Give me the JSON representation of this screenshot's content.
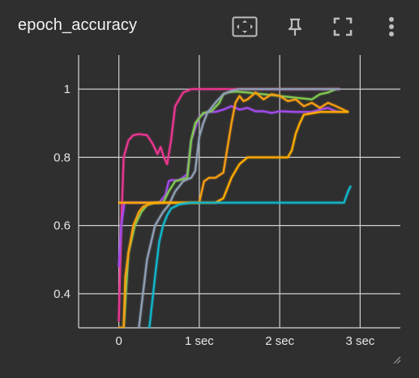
{
  "card": {
    "title": "epoch_accuracy"
  },
  "toolbar": {
    "icons": [
      "fit-domain-icon",
      "pin-icon",
      "fullscreen-icon",
      "more-vert-icon"
    ]
  },
  "colors": {
    "background": "#2f2f2f",
    "grid": "#cfcfcf",
    "text": "#e6e6e6"
  },
  "chart_data": {
    "type": "line",
    "title": "epoch_accuracy",
    "xlabel": "",
    "ylabel": "",
    "xlim": [
      -0.5,
      3.5
    ],
    "ylim": [
      0.3,
      1.1
    ],
    "x_ticks": [
      0,
      1,
      2,
      3
    ],
    "x_tick_labels": [
      "0",
      "1 sec",
      "2 sec",
      "3 sec"
    ],
    "y_ticks": [
      0.4,
      0.6,
      0.8,
      1.0
    ],
    "y_tick_labels": [
      "0.4",
      "0.6",
      "0.8",
      "1"
    ],
    "grid": true,
    "legend": "none",
    "series": [
      {
        "color": "#e8368f",
        "x": [
          0.0,
          0.03,
          0.06,
          0.12,
          0.18,
          0.25,
          0.35,
          0.42,
          0.48,
          0.52,
          0.56,
          0.6,
          0.65,
          0.7,
          0.8,
          0.9,
          1.0,
          1.2,
          1.5,
          2.0,
          2.5,
          2.75
        ],
        "y": [
          0.32,
          0.6,
          0.8,
          0.85,
          0.865,
          0.868,
          0.865,
          0.84,
          0.81,
          0.83,
          0.8,
          0.78,
          0.85,
          0.95,
          0.99,
          1.0,
          1.0,
          1.0,
          1.0,
          1.0,
          1.0,
          1.0
        ]
      },
      {
        "color": "#a24bea",
        "x": [
          0.0,
          0.03,
          0.07,
          0.15,
          0.3,
          0.5,
          0.58,
          0.62,
          0.65,
          0.75,
          0.85,
          0.9,
          1.0,
          1.1,
          1.2,
          1.3,
          1.4,
          1.5,
          1.6,
          1.7,
          1.8,
          1.9,
          2.0,
          2.2,
          2.4,
          2.5,
          2.6,
          2.7,
          2.75
        ],
        "y": [
          0.48,
          0.6,
          0.667,
          0.667,
          0.667,
          0.667,
          0.69,
          0.73,
          0.733,
          0.733,
          0.75,
          0.85,
          0.92,
          0.933,
          0.933,
          0.94,
          0.95,
          0.94,
          0.945,
          0.935,
          0.935,
          0.93,
          0.935,
          0.933,
          0.933,
          0.94,
          0.945,
          0.935,
          0.933
        ]
      },
      {
        "color": "#7ec850",
        "x": [
          0.02,
          0.06,
          0.12,
          0.2,
          0.28,
          0.35,
          0.45,
          0.55,
          0.62,
          0.7,
          0.78,
          0.85,
          0.9,
          0.95,
          1.05,
          1.15,
          1.25,
          1.3,
          1.35,
          1.45,
          1.6,
          1.8,
          2.0,
          2.2,
          2.4,
          2.5,
          2.6,
          2.7
        ],
        "y": [
          0.3,
          0.3,
          0.52,
          0.6,
          0.64,
          0.66,
          0.667,
          0.667,
          0.7,
          0.73,
          0.735,
          0.74,
          0.85,
          0.9,
          0.93,
          0.935,
          0.96,
          0.985,
          0.99,
          0.993,
          0.99,
          0.985,
          0.98,
          0.975,
          0.97,
          0.985,
          0.99,
          1.0
        ]
      },
      {
        "color": "#8f9fb5",
        "x": [
          0.25,
          0.28,
          0.35,
          0.45,
          0.55,
          0.62,
          0.7,
          0.8,
          0.9,
          0.95,
          1.0,
          1.05,
          1.1,
          1.2,
          1.3,
          1.4,
          1.5,
          1.6,
          1.8,
          2.0,
          2.2,
          2.4,
          2.6,
          2.75
        ],
        "y": [
          0.3,
          0.36,
          0.5,
          0.6,
          0.64,
          0.66,
          0.7,
          0.73,
          0.74,
          0.76,
          0.86,
          0.9,
          0.93,
          0.96,
          0.985,
          0.995,
          1.0,
          1.0,
          1.0,
          1.0,
          1.0,
          1.0,
          1.0,
          1.0
        ]
      },
      {
        "color": "#f59d12",
        "x": [
          0.0,
          0.06,
          0.08,
          0.12,
          0.18,
          0.25,
          0.3,
          0.4,
          0.5,
          0.7,
          0.9,
          1.0,
          1.03,
          1.06,
          1.08,
          1.12,
          1.2,
          1.3,
          1.4,
          1.45,
          1.5,
          1.55,
          1.6,
          1.7,
          1.8,
          1.9,
          2.0,
          2.1,
          2.2,
          2.3,
          2.4,
          2.5,
          2.6,
          2.7,
          2.85
        ],
        "y": [
          0.3,
          0.3,
          0.45,
          0.52,
          0.6,
          0.64,
          0.655,
          0.665,
          0.667,
          0.667,
          0.667,
          0.667,
          0.7,
          0.73,
          0.733,
          0.74,
          0.74,
          0.755,
          0.9,
          0.96,
          0.98,
          0.965,
          0.97,
          0.99,
          0.97,
          0.985,
          0.98,
          0.965,
          0.97,
          0.95,
          0.96,
          0.945,
          0.96,
          0.95,
          0.933
        ]
      },
      {
        "color": "#ffab00",
        "x": [
          0.0,
          0.5,
          1.0,
          1.2,
          1.3,
          1.4,
          1.45,
          1.5,
          1.6,
          1.7,
          1.8,
          1.9,
          2.0,
          2.1,
          2.15,
          2.2,
          2.25,
          2.3,
          2.5,
          2.7,
          2.85
        ],
        "y": [
          0.667,
          0.667,
          0.667,
          0.667,
          0.68,
          0.74,
          0.76,
          0.78,
          0.8,
          0.8,
          0.8,
          0.8,
          0.8,
          0.8,
          0.82,
          0.87,
          0.9,
          0.925,
          0.933,
          0.933,
          0.933
        ]
      },
      {
        "color": "#12b5cb",
        "x": [
          0.38,
          0.45,
          0.5,
          0.55,
          0.6,
          0.65,
          0.75,
          0.9,
          1.1,
          1.5,
          2.0,
          2.5,
          2.8,
          2.85,
          2.88
        ],
        "y": [
          0.3,
          0.45,
          0.55,
          0.6,
          0.63,
          0.65,
          0.662,
          0.667,
          0.667,
          0.667,
          0.667,
          0.667,
          0.667,
          0.7,
          0.715
        ]
      }
    ]
  }
}
